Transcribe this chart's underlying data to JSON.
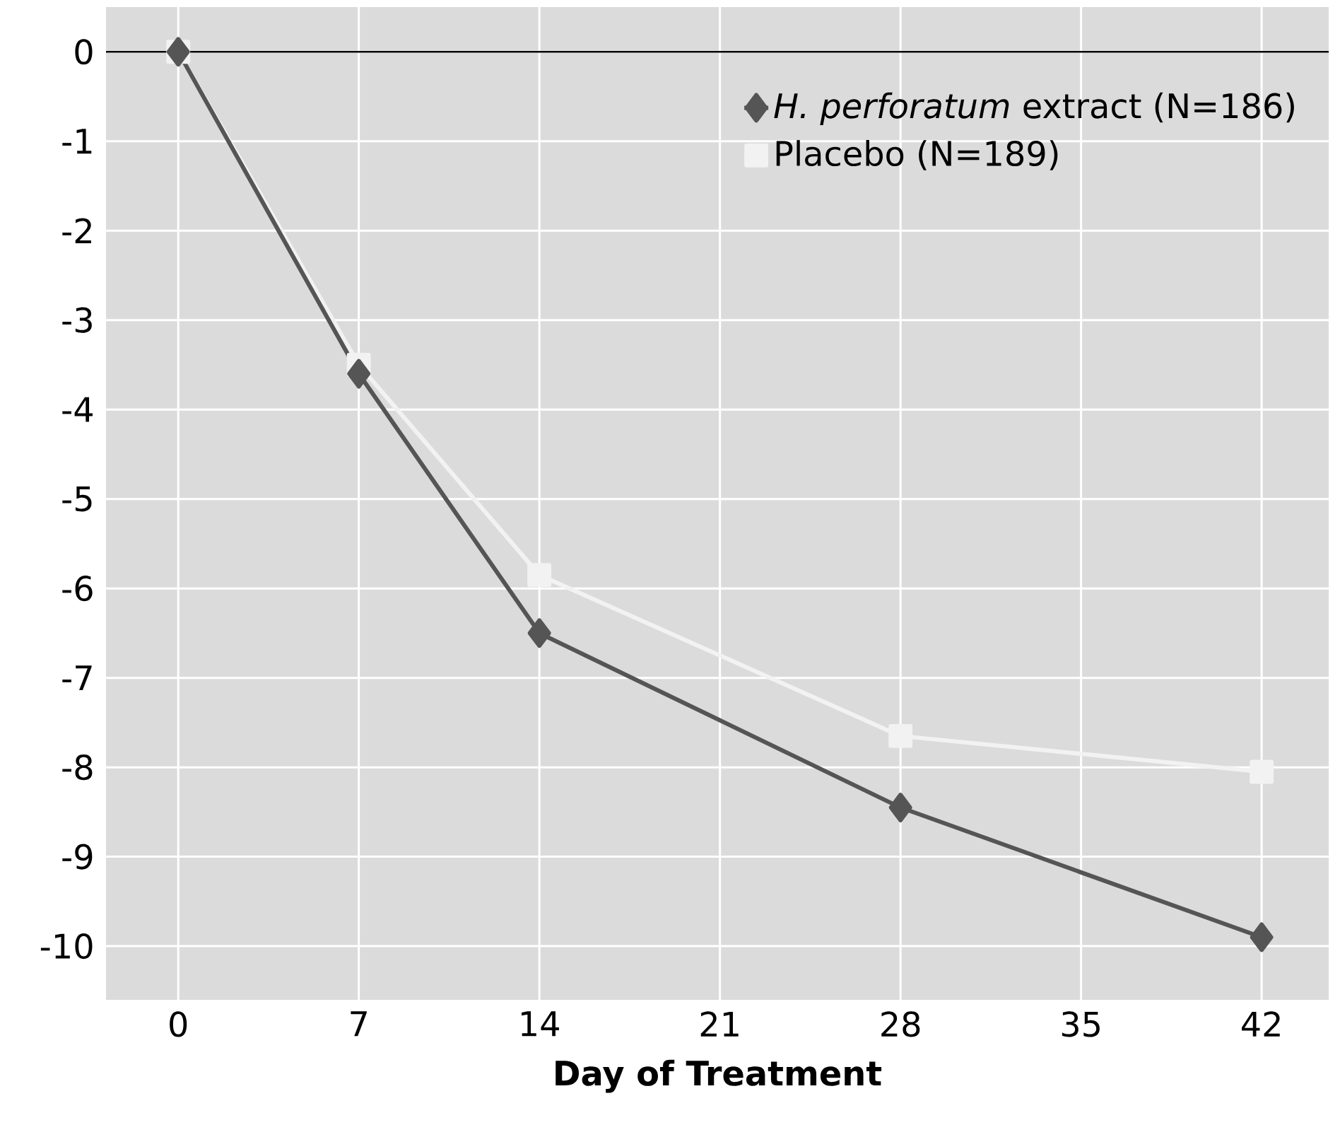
{
  "chart_data": {
    "type": "line",
    "xlabel": "Day of Treatment",
    "x": [
      0,
      7,
      14,
      28,
      42
    ],
    "series": [
      {
        "name": "*H. perforatum* extract (N=186)",
        "color": "#555555",
        "marker": "diamond",
        "values": [
          0,
          -3.6,
          -6.5,
          -8.45,
          -9.9
        ]
      },
      {
        "name": "Placebo (N=189)",
        "color": "#f2f2f2",
        "marker": "square",
        "values": [
          0,
          -3.5,
          -5.85,
          -7.65,
          -8.05
        ]
      }
    ],
    "xlim": [
      -2.8,
      44.6
    ],
    "ylim": [
      -10.6,
      0.5
    ],
    "xticks": [
      0,
      7,
      14,
      21,
      28,
      35,
      42
    ],
    "yticks": [
      0,
      -1,
      -2,
      -3,
      -4,
      -5,
      -6,
      -7,
      -8,
      -9,
      -10
    ],
    "grid": true,
    "legend": "top right",
    "line_style": "solid",
    "ref_lines": [
      {
        "axis": "y",
        "value": 0,
        "color": "#000000"
      }
    ]
  }
}
